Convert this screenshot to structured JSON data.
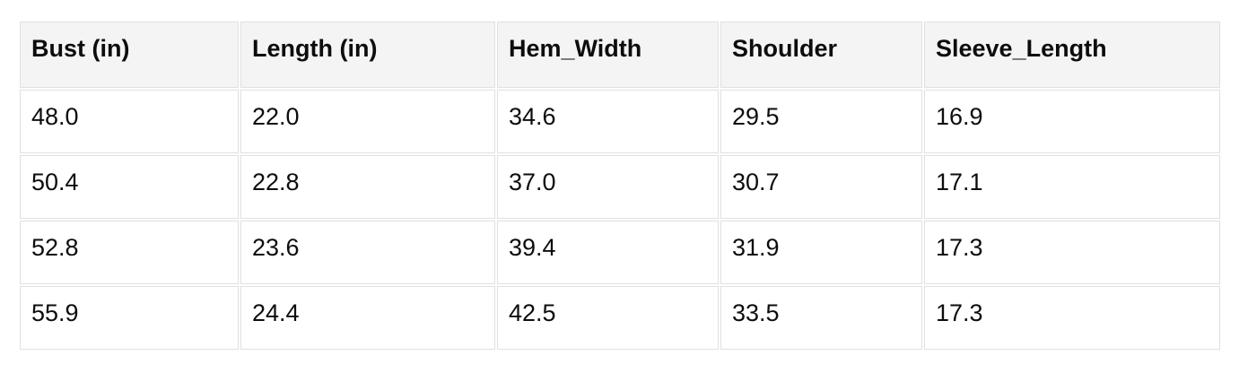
{
  "table": {
    "columns": [
      "Bust (in)",
      "Length (in)",
      "Hem_Width",
      "Shoulder",
      "Sleeve_Length"
    ],
    "rows": [
      [
        "48.0",
        "22.0",
        "34.6",
        "29.5",
        "16.9"
      ],
      [
        "50.4",
        "22.8",
        "37.0",
        "30.7",
        "17.1"
      ],
      [
        "52.8",
        "23.6",
        "39.4",
        "31.9",
        "17.3"
      ],
      [
        "55.9",
        "24.4",
        "42.5",
        "33.5",
        "17.3"
      ]
    ]
  },
  "colors": {
    "page_bg": "#ffffff",
    "header_bg": "#f4f4f4",
    "cell_bg": "#ffffff",
    "border": "#e0e0e0",
    "text": "#0d0d0d"
  }
}
